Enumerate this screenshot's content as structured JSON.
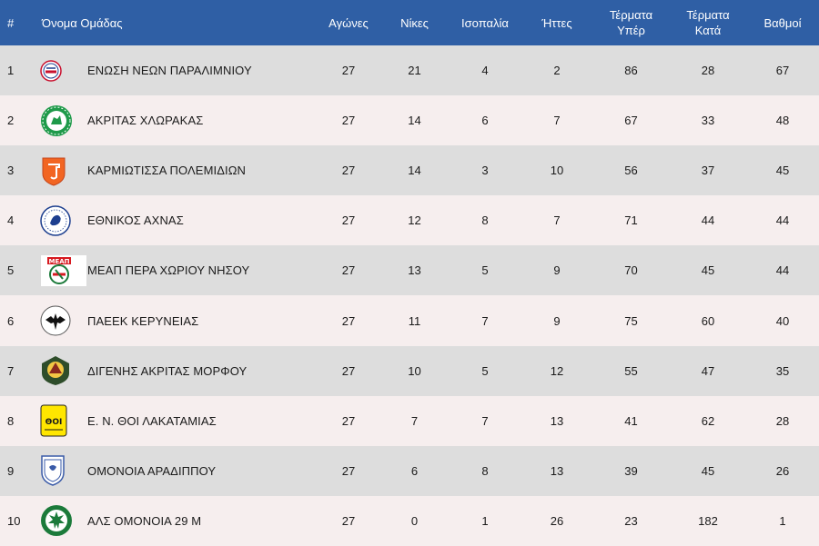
{
  "header": {
    "pos": "#",
    "team": "Όνομα Ομάδας",
    "games": "Αγώνες",
    "wins": "Νίκες",
    "draws": "Ισοπαλία",
    "losses": "Ήττες",
    "gf_line1": "Τέρματα",
    "gf_line2": "Υπέρ",
    "ga_line1": "Τέρματα",
    "ga_line2": "Κατά",
    "pts": "Βαθμοί"
  },
  "colors": {
    "header_bg": "#2f5fa5",
    "row_odd": "#dddddd",
    "row_even": "#f6eeee"
  },
  "rows": [
    {
      "pos": "1",
      "team": "ΕΝΩΣΗ ΝΕΩΝ ΠΑΡΑΛΙΜΝΙΟΥ",
      "logo": "enp-crest-icon",
      "games": "27",
      "wins": "21",
      "draws": "4",
      "losses": "2",
      "gf": "86",
      "ga": "28",
      "pts": "67"
    },
    {
      "pos": "2",
      "team": "ΑΚΡΙΤΑΣ ΧΛΩΡΑΚΑΣ",
      "logo": "akritas-crest-icon",
      "games": "27",
      "wins": "14",
      "draws": "6",
      "losses": "7",
      "gf": "67",
      "ga": "33",
      "pts": "48"
    },
    {
      "pos": "3",
      "team": "ΚΑΡΜΙΩΤΙΣΣΑ ΠΟΛΕΜΙΔΙΩΝ",
      "logo": "karmiotissa-crest-icon",
      "games": "27",
      "wins": "14",
      "draws": "3",
      "losses": "10",
      "gf": "56",
      "ga": "37",
      "pts": "45"
    },
    {
      "pos": "4",
      "team": "ΕΘΝΙΚΟΣ ΑΧΝΑΣ",
      "logo": "ethnikos-crest-icon",
      "games": "27",
      "wins": "12",
      "draws": "8",
      "losses": "7",
      "gf": "71",
      "ga": "44",
      "pts": "44"
    },
    {
      "pos": "5",
      "team": "ΜΕΑΠ ΠΕΡΑ ΧΩΡΙΟΥ ΝΗΣΟΥ",
      "logo": "meap-crest-icon",
      "logo_text": "ΜΕΑΠ",
      "games": "27",
      "wins": "13",
      "draws": "5",
      "losses": "9",
      "gf": "70",
      "ga": "45",
      "pts": "44"
    },
    {
      "pos": "6",
      "team": "ΠΑΕΕΚ ΚΕΡΥΝΕΙΑΣ",
      "logo": "paeek-crest-icon",
      "games": "27",
      "wins": "11",
      "draws": "7",
      "losses": "9",
      "gf": "75",
      "ga": "60",
      "pts": "40"
    },
    {
      "pos": "7",
      "team": "ΔΙΓΕΝΗΣ ΑΚΡΙΤΑΣ ΜΟΡΦΟΥ",
      "logo": "digenis-crest-icon",
      "games": "27",
      "wins": "10",
      "draws": "5",
      "losses": "12",
      "gf": "55",
      "ga": "47",
      "pts": "35"
    },
    {
      "pos": "8",
      "team": "Ε. Ν. ΘΟΙ ΛΑΚΑΤΑΜΙΑΣ",
      "logo": "thoi-crest-icon",
      "logo_text": "ΘΟΙ",
      "games": "27",
      "wins": "7",
      "draws": "7",
      "losses": "13",
      "gf": "41",
      "ga": "62",
      "pts": "28"
    },
    {
      "pos": "9",
      "team": "ΟΜΟΝΟΙΑ ΑΡΑΔΙΠΠΟΥ",
      "logo": "omonia-aradippou-crest-icon",
      "games": "27",
      "wins": "6",
      "draws": "8",
      "losses": "13",
      "gf": "39",
      "ga": "45",
      "pts": "26"
    },
    {
      "pos": "10",
      "team": "ΑΛΣ ΟΜΟΝΟΙΑ 29 Μ",
      "logo": "als-omonia-crest-icon",
      "games": "27",
      "wins": "0",
      "draws": "1",
      "losses": "26",
      "gf": "23",
      "ga": "182",
      "pts": "1"
    }
  ]
}
